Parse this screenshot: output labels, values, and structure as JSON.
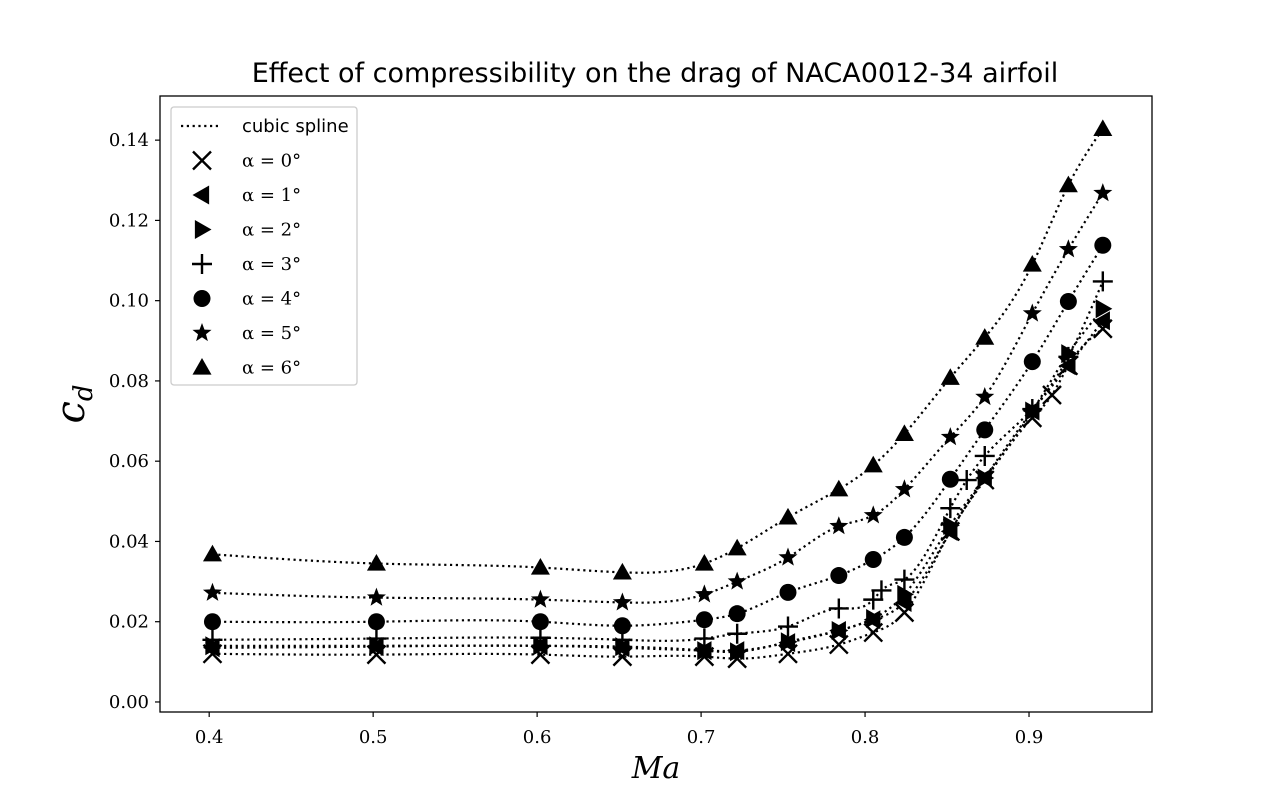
{
  "chart_data": {
    "type": "line",
    "title": "Effect of compressibility on the drag of NACA0012-34 airfoil",
    "xlabel": "Ma",
    "ylabel": "c_d",
    "ylabel_main": "c",
    "ylabel_sub": "d",
    "xlim": [
      0.37,
      0.975
    ],
    "ylim": [
      -0.0025,
      0.151
    ],
    "xticks": [
      0.4,
      0.5,
      0.6,
      0.7,
      0.8,
      0.9
    ],
    "xtick_labels": [
      "0.4",
      "0.5",
      "0.6",
      "0.7",
      "0.8",
      "0.9"
    ],
    "yticks": [
      0.0,
      0.02,
      0.04,
      0.06,
      0.08,
      0.1,
      0.12,
      0.14
    ],
    "ytick_labels": [
      "0.00",
      "0.02",
      "0.04",
      "0.06",
      "0.08",
      "0.10",
      "0.12",
      "0.14"
    ],
    "grid": false,
    "legend_position": "top-left",
    "legend_line_label": "cubic spline",
    "line_style": "dotted",
    "color": "#000000",
    "series": [
      {
        "name": "α = 0°",
        "marker": "x",
        "x": [
          0.402,
          0.502,
          0.602,
          0.652,
          0.702,
          0.722,
          0.753,
          0.784,
          0.805,
          0.824,
          0.852,
          0.873,
          0.902,
          0.914,
          0.924,
          0.945
        ],
        "y": [
          0.012,
          0.0118,
          0.0118,
          0.0113,
          0.0113,
          0.0108,
          0.012,
          0.0143,
          0.0173,
          0.0223,
          0.0425,
          0.0553,
          0.0708,
          0.0765,
          0.0838,
          0.093
        ]
      },
      {
        "name": "α = 1°",
        "marker": "triangle-left",
        "x": [
          0.402,
          0.502,
          0.602,
          0.652,
          0.702,
          0.722,
          0.753,
          0.784,
          0.805,
          0.824,
          0.852,
          0.873,
          0.902,
          0.924,
          0.945
        ],
        "y": [
          0.0135,
          0.0138,
          0.014,
          0.0135,
          0.0128,
          0.0128,
          0.0148,
          0.0178,
          0.0205,
          0.0248,
          0.0425,
          0.0558,
          0.0725,
          0.0838,
          0.095
        ]
      },
      {
        "name": "α = 2°",
        "marker": "triangle-right",
        "x": [
          0.402,
          0.502,
          0.602,
          0.652,
          0.702,
          0.722,
          0.753,
          0.784,
          0.805,
          0.824,
          0.852,
          0.873,
          0.902,
          0.924,
          0.945
        ],
        "y": [
          0.014,
          0.014,
          0.014,
          0.0138,
          0.0128,
          0.0125,
          0.015,
          0.0178,
          0.0208,
          0.0268,
          0.044,
          0.0558,
          0.0725,
          0.0868,
          0.098
        ]
      },
      {
        "name": "α = 3°",
        "marker": "plus",
        "x": [
          0.402,
          0.502,
          0.602,
          0.652,
          0.702,
          0.722,
          0.753,
          0.784,
          0.805,
          0.81,
          0.824,
          0.852,
          0.862,
          0.873,
          0.902,
          0.924,
          0.945
        ],
        "y": [
          0.0155,
          0.0158,
          0.016,
          0.0155,
          0.0158,
          0.017,
          0.0188,
          0.0233,
          0.0255,
          0.0278,
          0.0305,
          0.0483,
          0.0553,
          0.0613,
          0.073,
          0.086,
          0.1048
        ]
      },
      {
        "name": "α = 4°",
        "marker": "circle",
        "x": [
          0.402,
          0.502,
          0.602,
          0.652,
          0.702,
          0.722,
          0.753,
          0.784,
          0.805,
          0.824,
          0.852,
          0.873,
          0.902,
          0.924,
          0.945
        ],
        "y": [
          0.02,
          0.02,
          0.02,
          0.019,
          0.0205,
          0.022,
          0.0273,
          0.0315,
          0.0355,
          0.041,
          0.0555,
          0.0678,
          0.0848,
          0.0998,
          0.1138
        ]
      },
      {
        "name": "α = 5°",
        "marker": "star",
        "x": [
          0.402,
          0.502,
          0.602,
          0.652,
          0.702,
          0.722,
          0.753,
          0.784,
          0.805,
          0.824,
          0.852,
          0.873,
          0.902,
          0.924,
          0.945
        ],
        "y": [
          0.0272,
          0.026,
          0.0255,
          0.0248,
          0.0268,
          0.03,
          0.036,
          0.0438,
          0.0465,
          0.053,
          0.066,
          0.076,
          0.0968,
          0.1128,
          0.1268
        ]
      },
      {
        "name": "α = 6°",
        "marker": "triangle-up",
        "x": [
          0.402,
          0.502,
          0.602,
          0.652,
          0.702,
          0.722,
          0.753,
          0.784,
          0.805,
          0.824,
          0.852,
          0.873,
          0.902,
          0.924,
          0.945
        ],
        "y": [
          0.0368,
          0.0345,
          0.0335,
          0.0323,
          0.0345,
          0.0383,
          0.046,
          0.053,
          0.059,
          0.0668,
          0.0808,
          0.0908,
          0.109,
          0.1288,
          0.1428
        ]
      }
    ]
  }
}
